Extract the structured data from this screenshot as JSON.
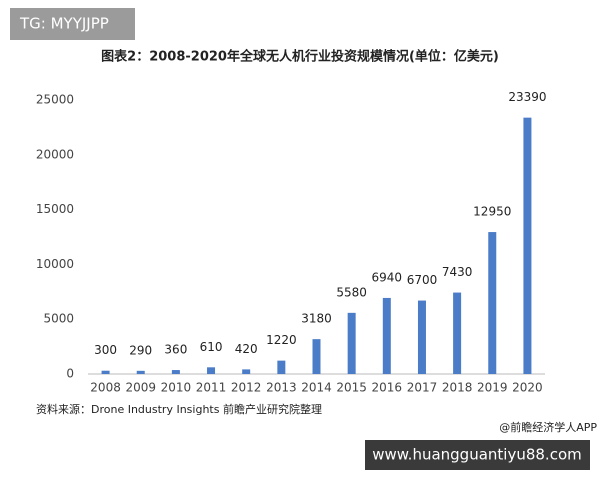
{
  "chart_data": {
    "type": "bar",
    "title": "图表2：2008-2020年全球无人机行业投资规模情况(单位：亿美元)",
    "categories": [
      "2008",
      "2009",
      "2010",
      "2011",
      "2012",
      "2013",
      "2014",
      "2015",
      "2016",
      "2017",
      "2018",
      "2019",
      "2020"
    ],
    "values": [
      300,
      290,
      360,
      610,
      420,
      1220,
      3180,
      5580,
      6940,
      6700,
      7430,
      12950,
      23390
    ],
    "color": "#4a7cc8",
    "ylim": [
      0,
      25000
    ],
    "yticks": [
      0,
      5000,
      10000,
      15000,
      20000,
      25000
    ],
    "grid": false
  },
  "source": "资料来源：Drone Industry Insights 前瞻产业研究院整理",
  "credit": "@前瞻经济学人APP",
  "corner_tag": "TG: MYYJJPP",
  "site_banner": "www.huangguantiyu88.com"
}
